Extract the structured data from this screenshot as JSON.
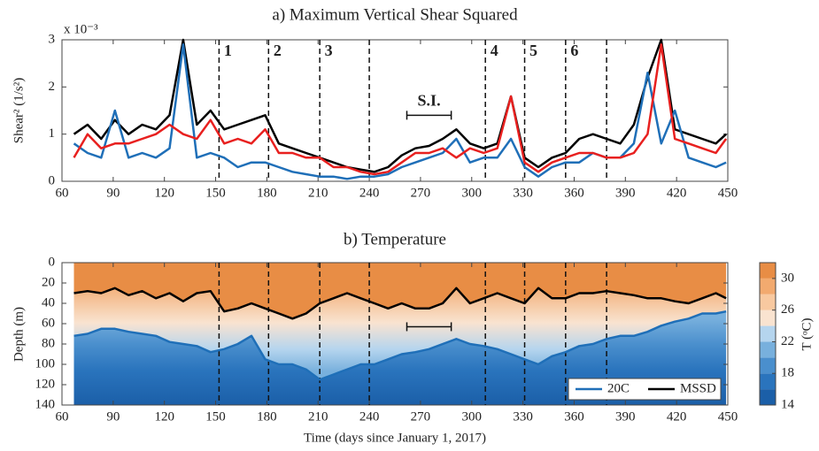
{
  "chart_data": [
    {
      "type": "line",
      "title": "a) Maximum Vertical Shear Squared",
      "ylabel": "Shear² (1/s²)",
      "multiplier": "x 10⁻³",
      "xlim": [
        60,
        450
      ],
      "xticks": [
        60,
        90,
        120,
        150,
        180,
        210,
        240,
        270,
        300,
        330,
        360,
        390,
        420,
        450
      ],
      "ylim": [
        0,
        3
      ],
      "yticks": [
        0,
        1,
        2,
        3
      ],
      "x": [
        67,
        75,
        83,
        91,
        99,
        107,
        115,
        123,
        131,
        139,
        147,
        155,
        163,
        171,
        179,
        187,
        195,
        203,
        211,
        219,
        227,
        235,
        243,
        251,
        259,
        267,
        275,
        283,
        291,
        299,
        307,
        315,
        323,
        331,
        339,
        347,
        355,
        363,
        371,
        379,
        387,
        395,
        403,
        411,
        419,
        427,
        435,
        443,
        449
      ],
      "series": [
        {
          "color": "#000000",
          "values": [
            1.0,
            1.2,
            0.9,
            1.3,
            1.0,
            1.2,
            1.1,
            1.4,
            3.0,
            1.2,
            1.5,
            1.1,
            1.2,
            1.3,
            1.4,
            0.8,
            0.7,
            0.6,
            0.5,
            0.4,
            0.3,
            0.25,
            0.2,
            0.3,
            0.55,
            0.7,
            0.75,
            0.9,
            1.1,
            0.8,
            0.7,
            0.8,
            1.8,
            0.5,
            0.3,
            0.5,
            0.6,
            0.9,
            1.0,
            0.9,
            0.8,
            1.2,
            2.2,
            3.0,
            1.1,
            1.0,
            0.9,
            0.8,
            1.0
          ]
        },
        {
          "color": "#1f6fb8",
          "values": [
            0.8,
            0.6,
            0.5,
            1.5,
            0.5,
            0.6,
            0.5,
            0.7,
            2.9,
            0.5,
            0.6,
            0.5,
            0.3,
            0.4,
            0.4,
            0.3,
            0.2,
            0.15,
            0.1,
            0.1,
            0.05,
            0.1,
            0.1,
            0.15,
            0.3,
            0.4,
            0.5,
            0.6,
            0.9,
            0.4,
            0.5,
            0.5,
            0.9,
            0.3,
            0.1,
            0.3,
            0.4,
            0.4,
            0.6,
            0.5,
            0.5,
            0.8,
            2.3,
            0.8,
            1.5,
            0.5,
            0.4,
            0.3,
            0.4
          ]
        },
        {
          "color": "#e8201f",
          "values": [
            0.5,
            1.0,
            0.7,
            0.8,
            0.8,
            0.9,
            1.0,
            1.2,
            1.0,
            0.9,
            1.3,
            0.8,
            0.9,
            0.8,
            1.1,
            0.6,
            0.6,
            0.5,
            0.5,
            0.3,
            0.3,
            0.2,
            0.15,
            0.2,
            0.4,
            0.6,
            0.6,
            0.7,
            0.5,
            0.7,
            0.6,
            0.7,
            1.8,
            0.4,
            0.2,
            0.4,
            0.5,
            0.6,
            0.6,
            0.5,
            0.5,
            0.6,
            1.0,
            2.9,
            0.9,
            0.8,
            0.7,
            0.6,
            0.9
          ]
        }
      ],
      "vlines": [
        152,
        181,
        211,
        240,
        308,
        331,
        355,
        379
      ],
      "annotations": [
        {
          "text": "1",
          "x": 152
        },
        {
          "text": "2",
          "x": 181
        },
        {
          "text": "3",
          "x": 211
        },
        {
          "text": "4",
          "x": 308
        },
        {
          "text": "5",
          "x": 331
        },
        {
          "text": "6",
          "x": 355
        }
      ],
      "bracket": {
        "text": "S.I.",
        "x": [
          262,
          288
        ],
        "y": 1.4
      }
    },
    {
      "type": "field",
      "title": "b) Temperature",
      "xlabel": "Time (days since January 1, 2017)",
      "ylabel": "Depth (m)",
      "xlim": [
        60,
        450
      ],
      "xticks": [
        60,
        90,
        120,
        150,
        180,
        210,
        240,
        270,
        300,
        330,
        360,
        390,
        420,
        450
      ],
      "ylim": [
        140,
        0
      ],
      "yticks": [
        0,
        20,
        40,
        60,
        80,
        100,
        120,
        140
      ],
      "x": [
        67,
        75,
        83,
        91,
        99,
        107,
        115,
        123,
        131,
        139,
        147,
        155,
        163,
        171,
        179,
        187,
        195,
        203,
        211,
        219,
        227,
        235,
        243,
        251,
        259,
        267,
        275,
        283,
        291,
        299,
        307,
        315,
        323,
        331,
        339,
        347,
        355,
        363,
        371,
        379,
        387,
        395,
        403,
        411,
        419,
        427,
        435,
        443,
        449
      ],
      "series": [
        {
          "name": "20C",
          "color": "#1f6fb8",
          "values": [
            72,
            70,
            65,
            65,
            68,
            70,
            72,
            78,
            80,
            82,
            88,
            85,
            80,
            72,
            95,
            100,
            100,
            105,
            115,
            110,
            105,
            100,
            100,
            95,
            90,
            88,
            85,
            80,
            75,
            80,
            82,
            85,
            90,
            95,
            100,
            92,
            88,
            82,
            80,
            75,
            72,
            72,
            68,
            62,
            58,
            55,
            50,
            50,
            48
          ]
        },
        {
          "name": "MSSD",
          "color": "#000000",
          "values": [
            30,
            28,
            30,
            25,
            32,
            28,
            35,
            30,
            38,
            30,
            28,
            48,
            45,
            40,
            45,
            50,
            55,
            50,
            40,
            35,
            30,
            35,
            40,
            45,
            40,
            45,
            45,
            40,
            25,
            40,
            35,
            30,
            35,
            40,
            25,
            35,
            35,
            30,
            30,
            28,
            30,
            32,
            35,
            35,
            38,
            40,
            35,
            30,
            35
          ]
        }
      ],
      "legend": "lower right",
      "vlines": [
        152,
        181,
        211,
        240,
        308,
        331,
        355,
        379
      ],
      "bracket": {
        "x": [
          262,
          288
        ],
        "y": 63
      },
      "colorbar": {
        "label": "T (ᵒC)",
        "clim": [
          14,
          32
        ],
        "ticks": [
          14,
          18,
          22,
          26,
          30
        ],
        "colors": [
          "#1b5fa8",
          "#2a74bd",
          "#4a8fcd",
          "#78b0dd",
          "#b5d5ee",
          "#f9e3d0",
          "#f8c9a0",
          "#f2aa6f",
          "#e88d45"
        ]
      }
    }
  ]
}
